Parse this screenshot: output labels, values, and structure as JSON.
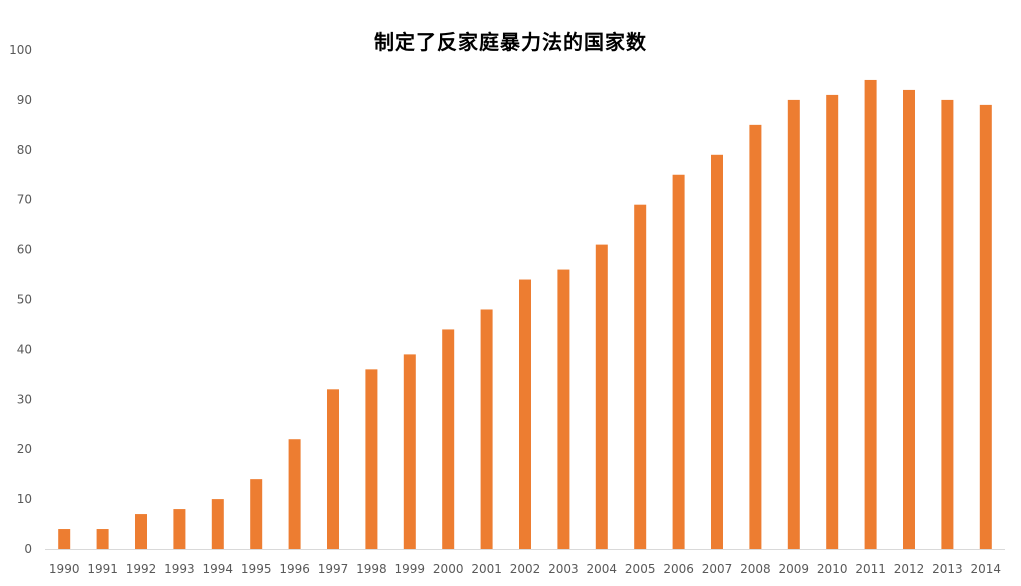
{
  "chart_data": {
    "type": "bar",
    "title": "制定了反家庭暴力法的国家数",
    "xlabel": "",
    "ylabel": "",
    "categories": [
      "1990",
      "1991",
      "1992",
      "1993",
      "1994",
      "1995",
      "1996",
      "1997",
      "1998",
      "1999",
      "2000",
      "2001",
      "2002",
      "2003",
      "2004",
      "2005",
      "2006",
      "2007",
      "2008",
      "2009",
      "2010",
      "2011",
      "2012",
      "2013",
      "2014"
    ],
    "values": [
      4,
      4,
      7,
      8,
      10,
      14,
      22,
      32,
      36,
      39,
      44,
      48,
      54,
      56,
      61,
      69,
      75,
      79,
      85,
      90,
      91,
      94,
      92,
      90,
      89
    ],
    "ylim": [
      0,
      100
    ],
    "yticks": [
      "0",
      "10",
      "20",
      "30",
      "40",
      "50",
      "60",
      "70",
      "80",
      "90",
      "100"
    ],
    "grid": false,
    "legend": "none",
    "bar_color": "#ED7D31",
    "axis_color": "#D9D9D9",
    "tick_color": "#595959"
  }
}
